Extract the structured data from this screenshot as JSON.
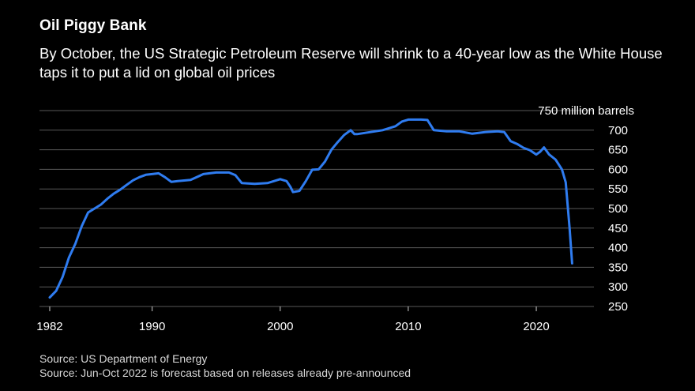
{
  "header": {
    "title": "Oil Piggy Bank",
    "subtitle": "By October, the US Strategic Petroleum Reserve will shrink to a 40-year low as the White House taps it to put a lid on global oil prices"
  },
  "footer": {
    "source1": "Source: US Department of Energy",
    "source2": "Source: Jun-Oct 2022 is forecast based on releases already pre-announced"
  },
  "colors": {
    "background": "#000000",
    "series": "#2f7cf0",
    "grid": "#595959",
    "text": "#ffffff"
  },
  "chart_data": {
    "type": "line",
    "title": "Oil Piggy Bank",
    "ylabel_unit": "750 million barrels",
    "xlim": [
      1981.2,
      2024.5
    ],
    "ylim": [
      250,
      750
    ],
    "yticks": [
      250,
      300,
      350,
      400,
      450,
      500,
      550,
      600,
      650,
      700,
      750
    ],
    "ytick_labels": [
      "250",
      "300",
      "350",
      "400",
      "450",
      "500",
      "550",
      "600",
      "650",
      "700",
      "750 million barrels"
    ],
    "xticks": [
      1982,
      1990,
      2000,
      2010,
      2020
    ],
    "xtick_labels": [
      "1982",
      "1990",
      "2000",
      "2010",
      "2020"
    ],
    "grid": true,
    "legend": "none",
    "series": [
      {
        "x": [
          1982.0,
          1982.5,
          1983.0,
          1983.5,
          1984.0,
          1984.5,
          1985.0,
          1985.5,
          1986.0,
          1986.5,
          1987.0,
          1987.5,
          1988.0,
          1988.5,
          1989.0,
          1989.5,
          1990.0,
          1990.5,
          1991.0,
          1991.5,
          1992.0,
          1993.0,
          1994.0,
          1995.0,
          1996.0,
          1996.5,
          1997.0,
          1998.0,
          1999.0,
          1999.5,
          2000.0,
          2000.5,
          2000.8,
          2001.0,
          2001.5,
          2002.0,
          2002.5,
          2003.0,
          2003.5,
          2004.0,
          2004.5,
          2005.0,
          2005.5,
          2005.8,
          2006.0,
          2007.0,
          2008.0,
          2008.5,
          2009.0,
          2009.5,
          2010.0,
          2011.0,
          2011.5,
          2012.0,
          2013.0,
          2014.0,
          2015.0,
          2016.0,
          2017.0,
          2017.5,
          2018.0,
          2018.5,
          2019.0,
          2019.5,
          2020.0,
          2020.3,
          2020.6,
          2021.0,
          2021.5,
          2022.0,
          2022.3,
          2022.6,
          2022.8
        ],
        "values": [
          273,
          290,
          325,
          375,
          410,
          455,
          490,
          500,
          510,
          525,
          538,
          548,
          560,
          572,
          580,
          586,
          588,
          590,
          580,
          568,
          570,
          573,
          588,
          592,
          592,
          585,
          565,
          563,
          565,
          570,
          575,
          570,
          555,
          542,
          545,
          570,
          599,
          600,
          620,
          650,
          670,
          688,
          700,
          690,
          690,
          695,
          700,
          705,
          710,
          722,
          727,
          727,
          726,
          700,
          697,
          697,
          691,
          695,
          697,
          695,
          672,
          665,
          655,
          649,
          638,
          645,
          656,
          638,
          625,
          600,
          567,
          450,
          360
        ]
      }
    ]
  }
}
